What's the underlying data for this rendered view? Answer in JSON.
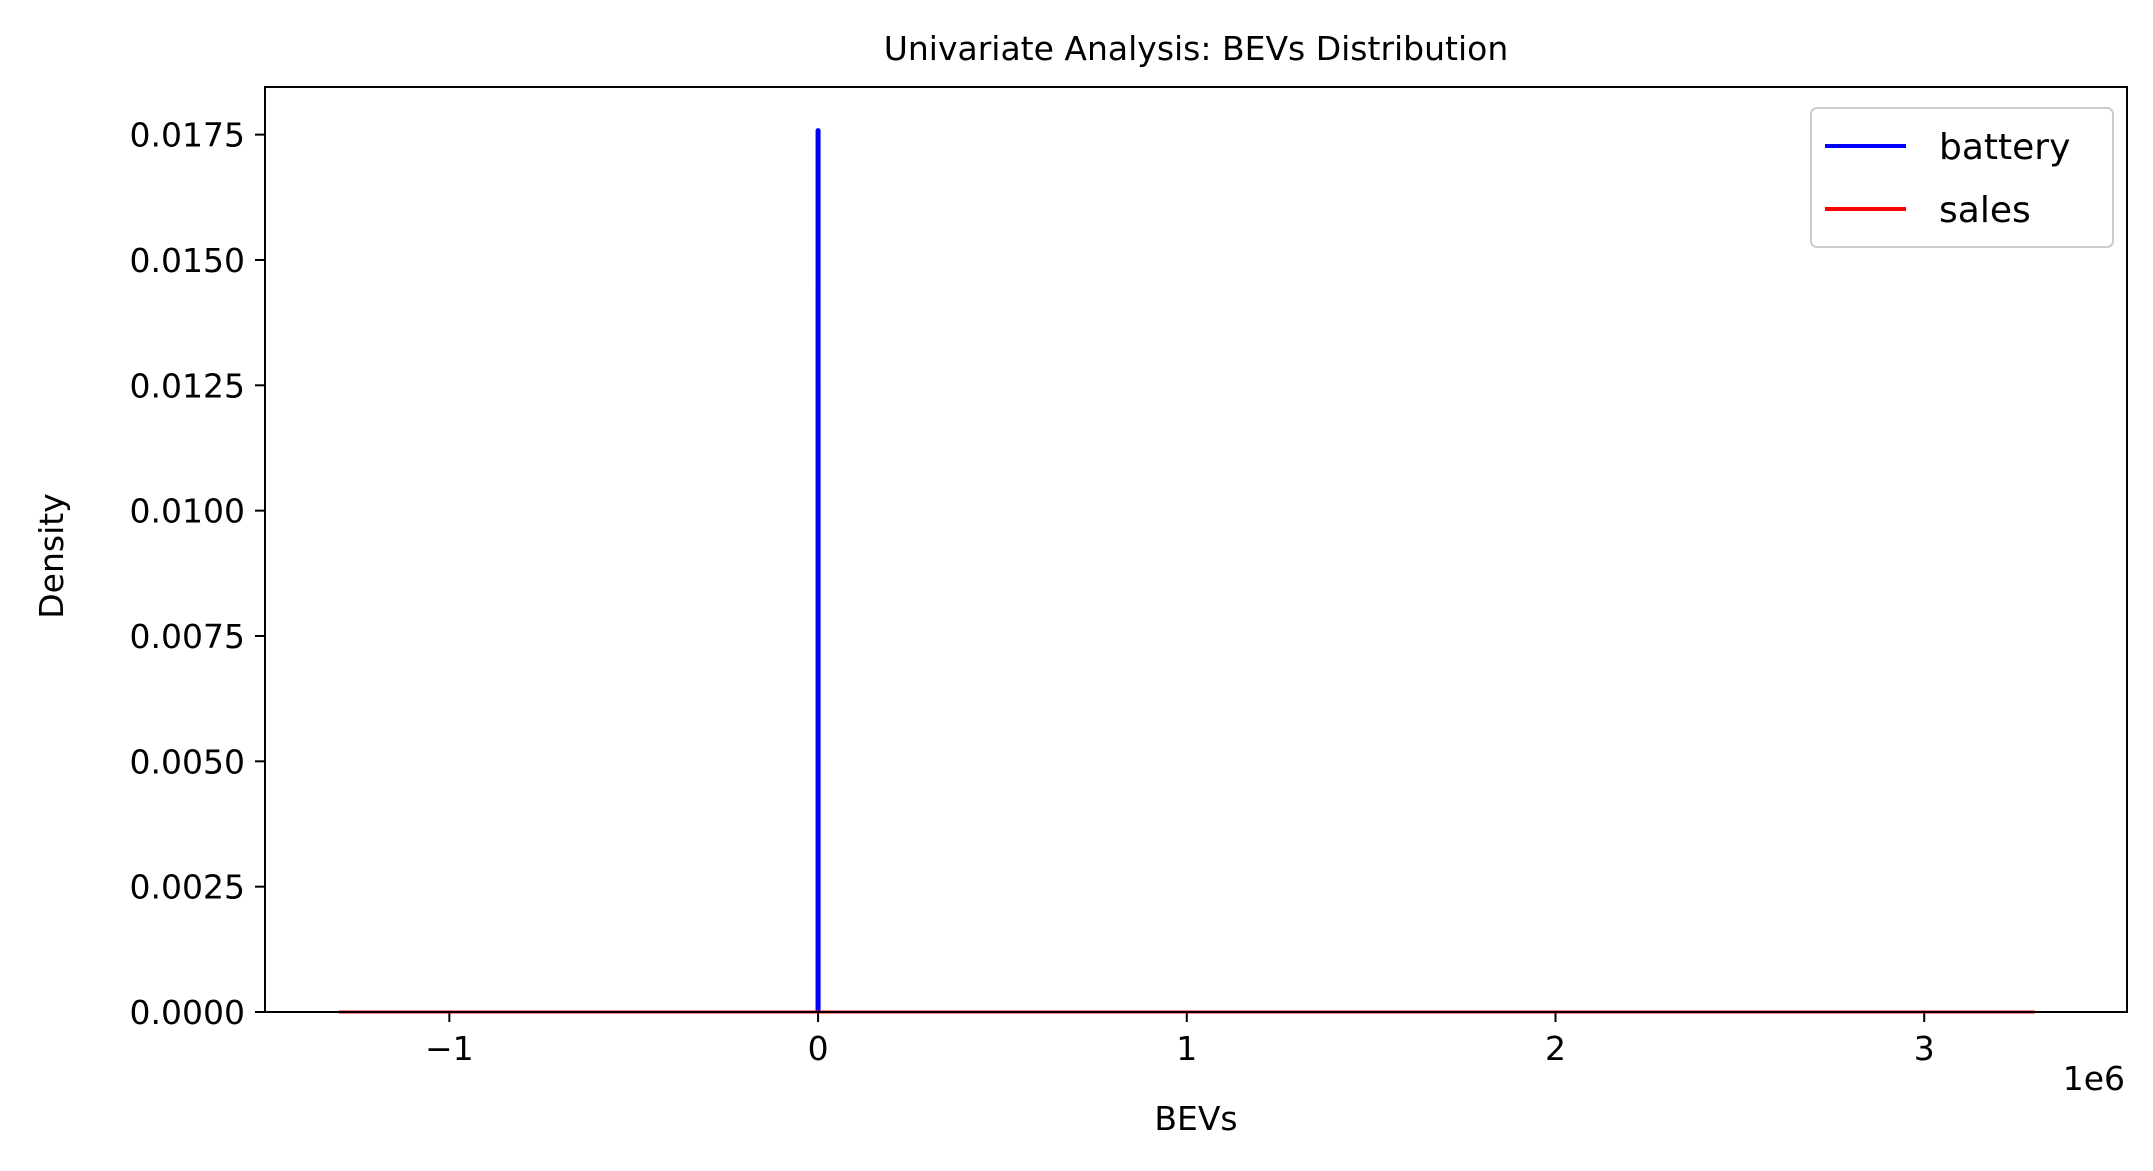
{
  "chart_data": {
    "type": "line",
    "title": "Univariate Analysis: BEVs Distribution",
    "xlabel": "BEVs",
    "ylabel": "Density",
    "x_offset_label": "1e6",
    "xlim": [
      -1.5,
      3.55
    ],
    "ylim": [
      0,
      0.01845
    ],
    "xticks": [
      -1,
      0,
      1,
      2,
      3
    ],
    "xtick_labels": [
      "−1",
      "0",
      "1",
      "2",
      "3"
    ],
    "yticks": [
      0,
      0.0025,
      0.005,
      0.0075,
      0.01,
      0.0125,
      0.015,
      0.0175
    ],
    "ytick_labels": [
      "0.0000",
      "0.0025",
      "0.0050",
      "0.0075",
      "0.0100",
      "0.0125",
      "0.0150",
      "0.0175"
    ],
    "legend_position": "top-right",
    "series": [
      {
        "name": "battery",
        "color": "#0000ff",
        "x": [
          -0.0001,
          0,
          0.0001
        ],
        "y": [
          0,
          0.01758,
          0
        ]
      },
      {
        "name": "sales",
        "color": "#ff0000",
        "x": [
          -1.3,
          3.3
        ],
        "y": [
          0,
          0
        ]
      }
    ]
  }
}
